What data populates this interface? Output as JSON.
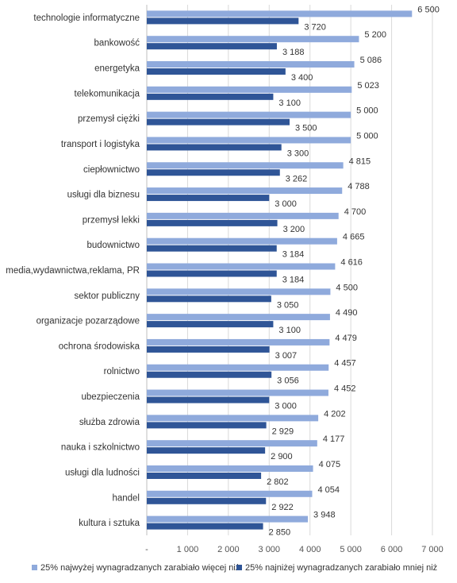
{
  "chart_data": {
    "type": "bar",
    "orientation": "horizontal",
    "categories": [
      "technologie informatyczne",
      "bankowość",
      "energetyka",
      "telekomunikacja",
      "przemysł ciężki",
      "transport i logistyka",
      "ciepłownictwo",
      "usługi dla biznesu",
      "przemysł lekki",
      "budownictwo",
      "media,wydawnictwa,reklama, PR",
      "sektor publiczny",
      "organizacje pozarządowe",
      "ochrona środowiska",
      "rolnictwo",
      "ubezpieczenia",
      "służba zdrowia",
      "nauka i szkolnictwo",
      "usługi dla ludności",
      "handel",
      "kultura i sztuka"
    ],
    "series": [
      {
        "name": "25% najwyżej wynagradzanych zarabiało więcej niż",
        "color": "#8faadc",
        "values": [
          6500,
          5200,
          5086,
          5023,
          5000,
          5000,
          4815,
          4788,
          4700,
          4665,
          4616,
          4500,
          4490,
          4479,
          4457,
          4452,
          4202,
          4177,
          4075,
          4054,
          3948
        ],
        "labels": [
          "6 500",
          "5 200",
          "5 086",
          "5 023",
          "5 000",
          "5 000",
          "4 815",
          "4 788",
          "4 700",
          "4 665",
          "4 616",
          "4 500",
          "4 490",
          "4 479",
          "4 457",
          "4 452",
          "4 202",
          "4 177",
          "4 075",
          "4 054",
          "3 948"
        ]
      },
      {
        "name": "25% najniżej wynagradzanych zarabiało mniej niż",
        "color": "#2f5597",
        "values": [
          3720,
          3188,
          3400,
          3100,
          3500,
          3300,
          3262,
          3000,
          3200,
          3184,
          3184,
          3050,
          3100,
          3007,
          3056,
          3000,
          2929,
          2900,
          2802,
          2922,
          2850
        ],
        "labels": [
          "3 720",
          "3 188",
          "3 400",
          "3 100",
          "3 500",
          "3 300",
          "3 262",
          "3 000",
          "3 200",
          "3 184",
          "3 184",
          "3 050",
          "3 100",
          "3 007",
          "3 056",
          "3 000",
          "2 929",
          "2 900",
          "2 802",
          "2 922",
          "2 850"
        ]
      }
    ],
    "xlim": [
      0,
      7000
    ],
    "ticks": [
      0,
      1000,
      2000,
      3000,
      4000,
      5000,
      6000,
      7000
    ],
    "tick_labels": [
      "-",
      "1 000",
      "2 000",
      "3 000",
      "4 000",
      "5 000",
      "6 000",
      "7 000"
    ],
    "grid": true,
    "legend_position": "bottom"
  }
}
